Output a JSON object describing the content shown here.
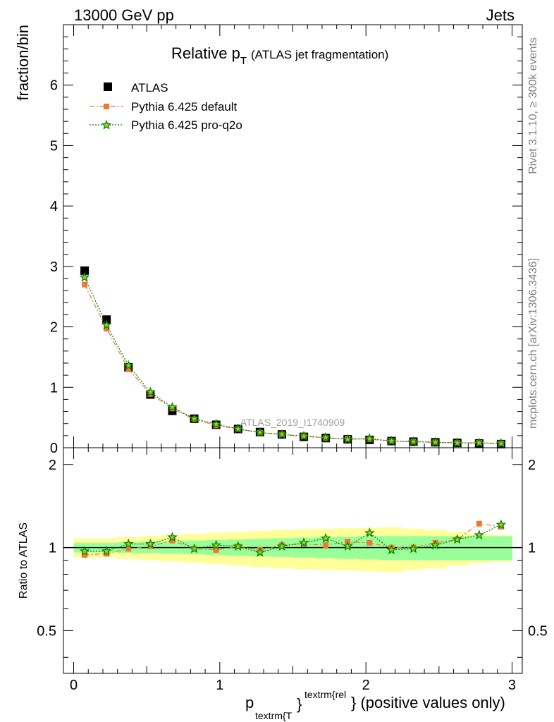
{
  "header": {
    "left": "13000 GeV pp",
    "right": "Jets"
  },
  "side_text": {
    "rivet": "Rivet 3.1.10, ≥ 300k events",
    "mcplots": "mcplots.cern.ch [arXiv:1306.3436]"
  },
  "colors": {
    "atlas": "#000000",
    "pythia_default": "#f07830",
    "pythia_proq2o": "#008000",
    "band_inner": "#99ff99",
    "band_outer": "#ffff99"
  },
  "chart_data": [
    {
      "type": "scatter",
      "title": "Relative p",
      "title_sub": "T",
      "title_suffix": "(ATLAS jet fragmentation)",
      "ylabel": "fraction/bin",
      "watermark": "ATLAS_2019_I1740909",
      "xlim": [
        -0.07,
        3.07
      ],
      "ylim": [
        0,
        7
      ],
      "yticks": [
        0,
        1,
        2,
        3,
        4,
        5,
        6
      ],
      "legend_placement": "top-left",
      "legend": [
        "ATLAS",
        "Pythia 6.425 default",
        "Pythia 6.425 pro-q2o"
      ],
      "x": [
        0.075,
        0.225,
        0.375,
        0.525,
        0.675,
        0.825,
        0.975,
        1.125,
        1.275,
        1.425,
        1.575,
        1.725,
        1.875,
        2.025,
        2.175,
        2.325,
        2.475,
        2.625,
        2.775,
        2.925
      ],
      "series": [
        {
          "name": "ATLAS",
          "marker": "square",
          "values": [
            2.93,
            2.12,
            1.33,
            0.88,
            0.61,
            0.48,
            0.38,
            0.31,
            0.26,
            0.22,
            0.18,
            0.16,
            0.14,
            0.13,
            0.11,
            0.1,
            0.09,
            0.08,
            0.07,
            0.06
          ]
        },
        {
          "name": "Pythia 6.425 default",
          "marker": "filled-square",
          "values": [
            2.7,
            1.97,
            1.3,
            0.89,
            0.65,
            0.47,
            0.37,
            0.31,
            0.25,
            0.22,
            0.19,
            0.16,
            0.15,
            0.14,
            0.11,
            0.1,
            0.09,
            0.08,
            0.08,
            0.07
          ]
        },
        {
          "name": "Pythia 6.425 pro-q2o",
          "marker": "star",
          "values": [
            2.82,
            2.03,
            1.36,
            0.92,
            0.67,
            0.48,
            0.39,
            0.31,
            0.25,
            0.22,
            0.19,
            0.17,
            0.14,
            0.15,
            0.11,
            0.1,
            0.09,
            0.08,
            0.08,
            0.07
          ]
        }
      ]
    },
    {
      "type": "scatter",
      "ylabel": "Ratio to ATLAS",
      "xlabel": "p",
      "xlabel_sub": "textrm{T",
      "xlabel_sup": "textrm{rel",
      "xlabel_brace": "}",
      "xlabel_suffix": "} (positive values only)",
      "xlim": [
        -0.07,
        3.07
      ],
      "ylim": [
        0.35,
        2.3
      ],
      "yticks": [
        0.5,
        1,
        2
      ],
      "ytick_labels": [
        "0.5",
        "1",
        "2"
      ],
      "xticks": [
        0,
        1,
        2,
        3
      ],
      "xtick_labels": [
        "0",
        "1",
        "2",
        "3"
      ],
      "band_inner": [
        [
          0.96,
          1.04
        ],
        [
          0.96,
          1.04
        ],
        [
          0.955,
          1.045
        ],
        [
          0.955,
          1.05
        ],
        [
          0.95,
          1.055
        ],
        [
          0.945,
          1.06
        ],
        [
          0.94,
          1.065
        ],
        [
          0.935,
          1.07
        ],
        [
          0.93,
          1.075
        ],
        [
          0.925,
          1.08
        ],
        [
          0.92,
          1.085
        ],
        [
          0.915,
          1.09
        ],
        [
          0.91,
          1.095
        ],
        [
          0.905,
          1.1
        ],
        [
          0.9,
          1.1
        ],
        [
          0.9,
          1.1
        ],
        [
          0.9,
          1.1
        ],
        [
          0.9,
          1.1
        ],
        [
          0.9,
          1.1
        ],
        [
          0.9,
          1.1
        ]
      ],
      "band_outer": [
        [
          0.92,
          1.08
        ],
        [
          0.92,
          1.08
        ],
        [
          0.91,
          1.09
        ],
        [
          0.9,
          1.1
        ],
        [
          0.89,
          1.11
        ],
        [
          0.88,
          1.12
        ],
        [
          0.87,
          1.13
        ],
        [
          0.86,
          1.14
        ],
        [
          0.85,
          1.15
        ],
        [
          0.84,
          1.16
        ],
        [
          0.835,
          1.165
        ],
        [
          0.83,
          1.17
        ],
        [
          0.825,
          1.175
        ],
        [
          0.82,
          1.18
        ],
        [
          0.815,
          1.185
        ],
        [
          0.83,
          1.17
        ],
        [
          0.84,
          1.16
        ],
        [
          0.86,
          1.14
        ],
        [
          0.88,
          1.12
        ],
        [
          0.89,
          1.11
        ]
      ],
      "series": [
        {
          "name": "Pythia 6.425 default",
          "values": [
            0.94,
            0.95,
            0.99,
            1.01,
            1.06,
            0.99,
            0.98,
            1.01,
            0.98,
            1.02,
            1.03,
            1.02,
            1.05,
            1.04,
            1.0,
            1.0,
            1.04,
            1.07,
            1.22,
            1.19
          ]
        },
        {
          "name": "Pythia 6.425 pro-q2o",
          "values": [
            0.97,
            0.97,
            1.03,
            1.03,
            1.09,
            0.99,
            1.02,
            1.01,
            0.96,
            1.01,
            1.04,
            1.08,
            1.01,
            1.13,
            0.98,
            0.99,
            1.02,
            1.07,
            1.11,
            1.21
          ]
        }
      ]
    }
  ]
}
